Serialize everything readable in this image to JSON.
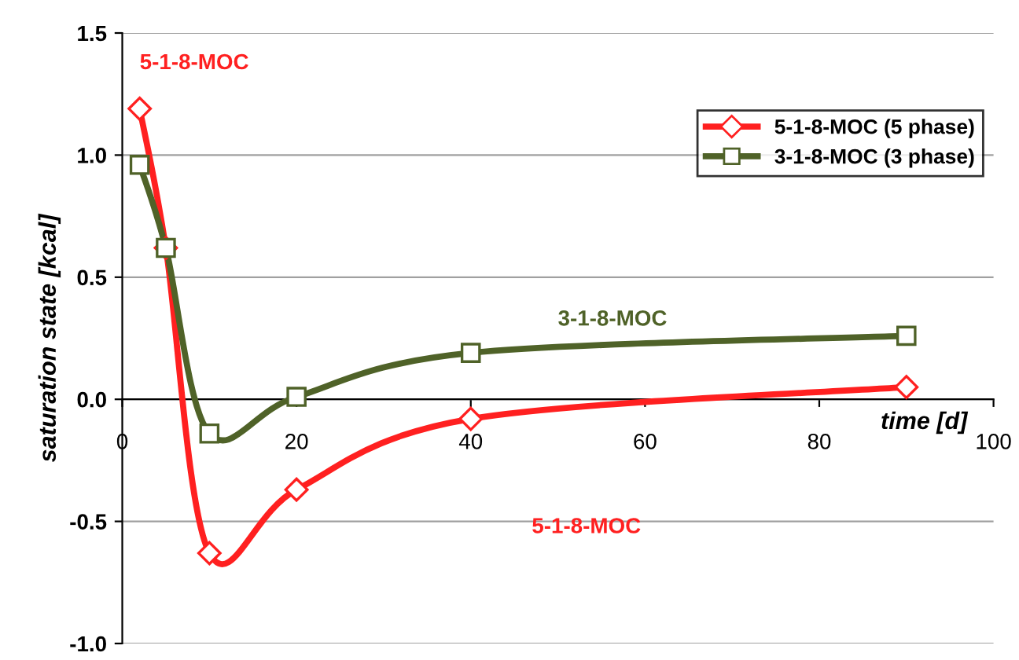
{
  "chart_data": {
    "type": "line",
    "ylabel": "saturation state [kcal]",
    "xlabel": "time [d]",
    "xlim": [
      0,
      100
    ],
    "xticks": [
      0,
      20,
      40,
      60,
      80,
      100
    ],
    "ylim": [
      -1.0,
      1.5
    ],
    "yticks": [
      {
        "value": -1.0,
        "label": "-1.0"
      },
      {
        "value": -0.5,
        "label": "-0.5"
      },
      {
        "value": 0.0,
        "label": "0.0"
      },
      {
        "value": 0.5,
        "label": "0.5"
      },
      {
        "value": 1.0,
        "label": "1.0"
      },
      {
        "value": 1.5,
        "label": "1.5"
      }
    ],
    "grid": "y",
    "legend": "top right",
    "line_style": "solid",
    "series": [
      {
        "name": "5-1-8-MOC (5 phase)",
        "color": "#ff2020",
        "marker": "diamond",
        "x": [
          2,
          5,
          10,
          20,
          40,
          90
        ],
        "values": [
          1.19,
          0.62,
          -0.63,
          -0.37,
          -0.08,
          0.05
        ]
      },
      {
        "name": "3-1-8-MOC (3 phase)",
        "color": "#4f6228",
        "marker": "square",
        "x": [
          2,
          5,
          10,
          20,
          40,
          90
        ],
        "values": [
          0.96,
          0.62,
          -0.14,
          0.01,
          0.19,
          0.26
        ]
      }
    ],
    "annotations": [
      "5-1-8-MOC",
      "3-1-8-MOC",
      "5-1-8-MOC"
    ]
  }
}
